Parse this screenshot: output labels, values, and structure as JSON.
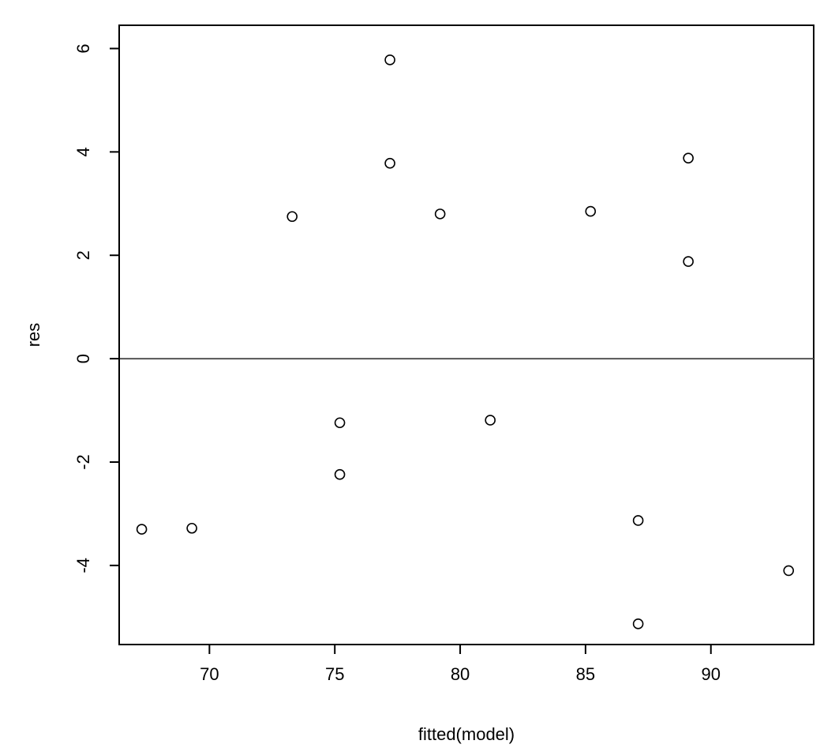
{
  "chart_data": {
    "type": "scatter",
    "xlabel": "fitted(model)",
    "ylabel": "res",
    "xlim": [
      66.4,
      94.1
    ],
    "ylim": [
      -5.53,
      6.45
    ],
    "x_ticks": [
      70,
      75,
      80,
      85,
      90
    ],
    "y_ticks": [
      -4,
      -2,
      0,
      2,
      4,
      6
    ],
    "grid": false,
    "reference_line": {
      "type": "horizontal",
      "y": 0
    },
    "marker": "open-circle",
    "colors": {
      "points": "#000000",
      "axes": "#000000",
      "reference_line": "#555555"
    },
    "points": [
      {
        "x": 67.3,
        "y": -3.3
      },
      {
        "x": 69.3,
        "y": -3.28
      },
      {
        "x": 73.3,
        "y": 2.75
      },
      {
        "x": 75.2,
        "y": -1.24
      },
      {
        "x": 75.2,
        "y": -2.24
      },
      {
        "x": 77.2,
        "y": 5.78
      },
      {
        "x": 77.2,
        "y": 3.78
      },
      {
        "x": 79.2,
        "y": 2.8
      },
      {
        "x": 81.2,
        "y": -1.19
      },
      {
        "x": 85.2,
        "y": 2.85
      },
      {
        "x": 87.1,
        "y": -3.13
      },
      {
        "x": 87.1,
        "y": -5.13
      },
      {
        "x": 89.1,
        "y": 3.88
      },
      {
        "x": 89.1,
        "y": 1.88
      },
      {
        "x": 93.1,
        "y": -4.1
      }
    ]
  }
}
